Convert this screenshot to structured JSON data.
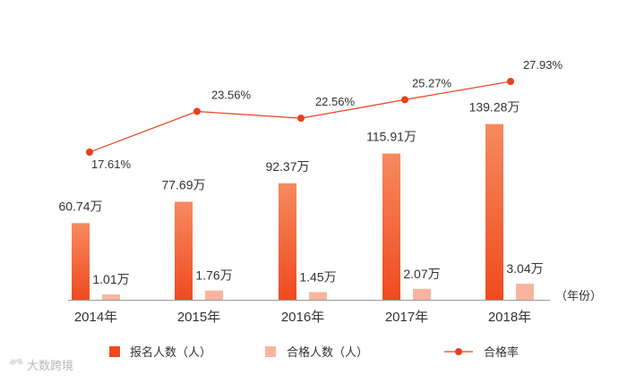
{
  "chart_data": {
    "type": "bar",
    "categories": [
      "2014年",
      "2015年",
      "2016年",
      "2017年",
      "2018年"
    ],
    "xlabel": "（年份）",
    "series": [
      {
        "name": "报名人数（人）",
        "kind": "bar",
        "values": [
          60.74,
          77.69,
          92.37,
          115.91,
          139.28
        ],
        "labels": [
          "60.74万",
          "77.69万",
          "92.37万",
          "115.91万",
          "139.28万"
        ]
      },
      {
        "name": "合格人数（人）",
        "kind": "bar",
        "values": [
          1.01,
          1.76,
          1.45,
          2.07,
          3.04
        ],
        "labels": [
          "1.01万",
          "1.76万",
          "1.45万",
          "2.07万",
          "3.04万"
        ]
      },
      {
        "name": "合格率",
        "kind": "line",
        "values": [
          17.61,
          23.56,
          22.56,
          25.27,
          27.93
        ],
        "labels": [
          "17.61%",
          "23.56%",
          "22.56%",
          "25.27%",
          "27.93%"
        ]
      }
    ],
    "colors": {
      "registered": "#f04a1f",
      "registered_top": "#f78a5f",
      "passed": "#f9b4a0",
      "rate": "#e8401c"
    }
  },
  "watermark": "大数跨境"
}
